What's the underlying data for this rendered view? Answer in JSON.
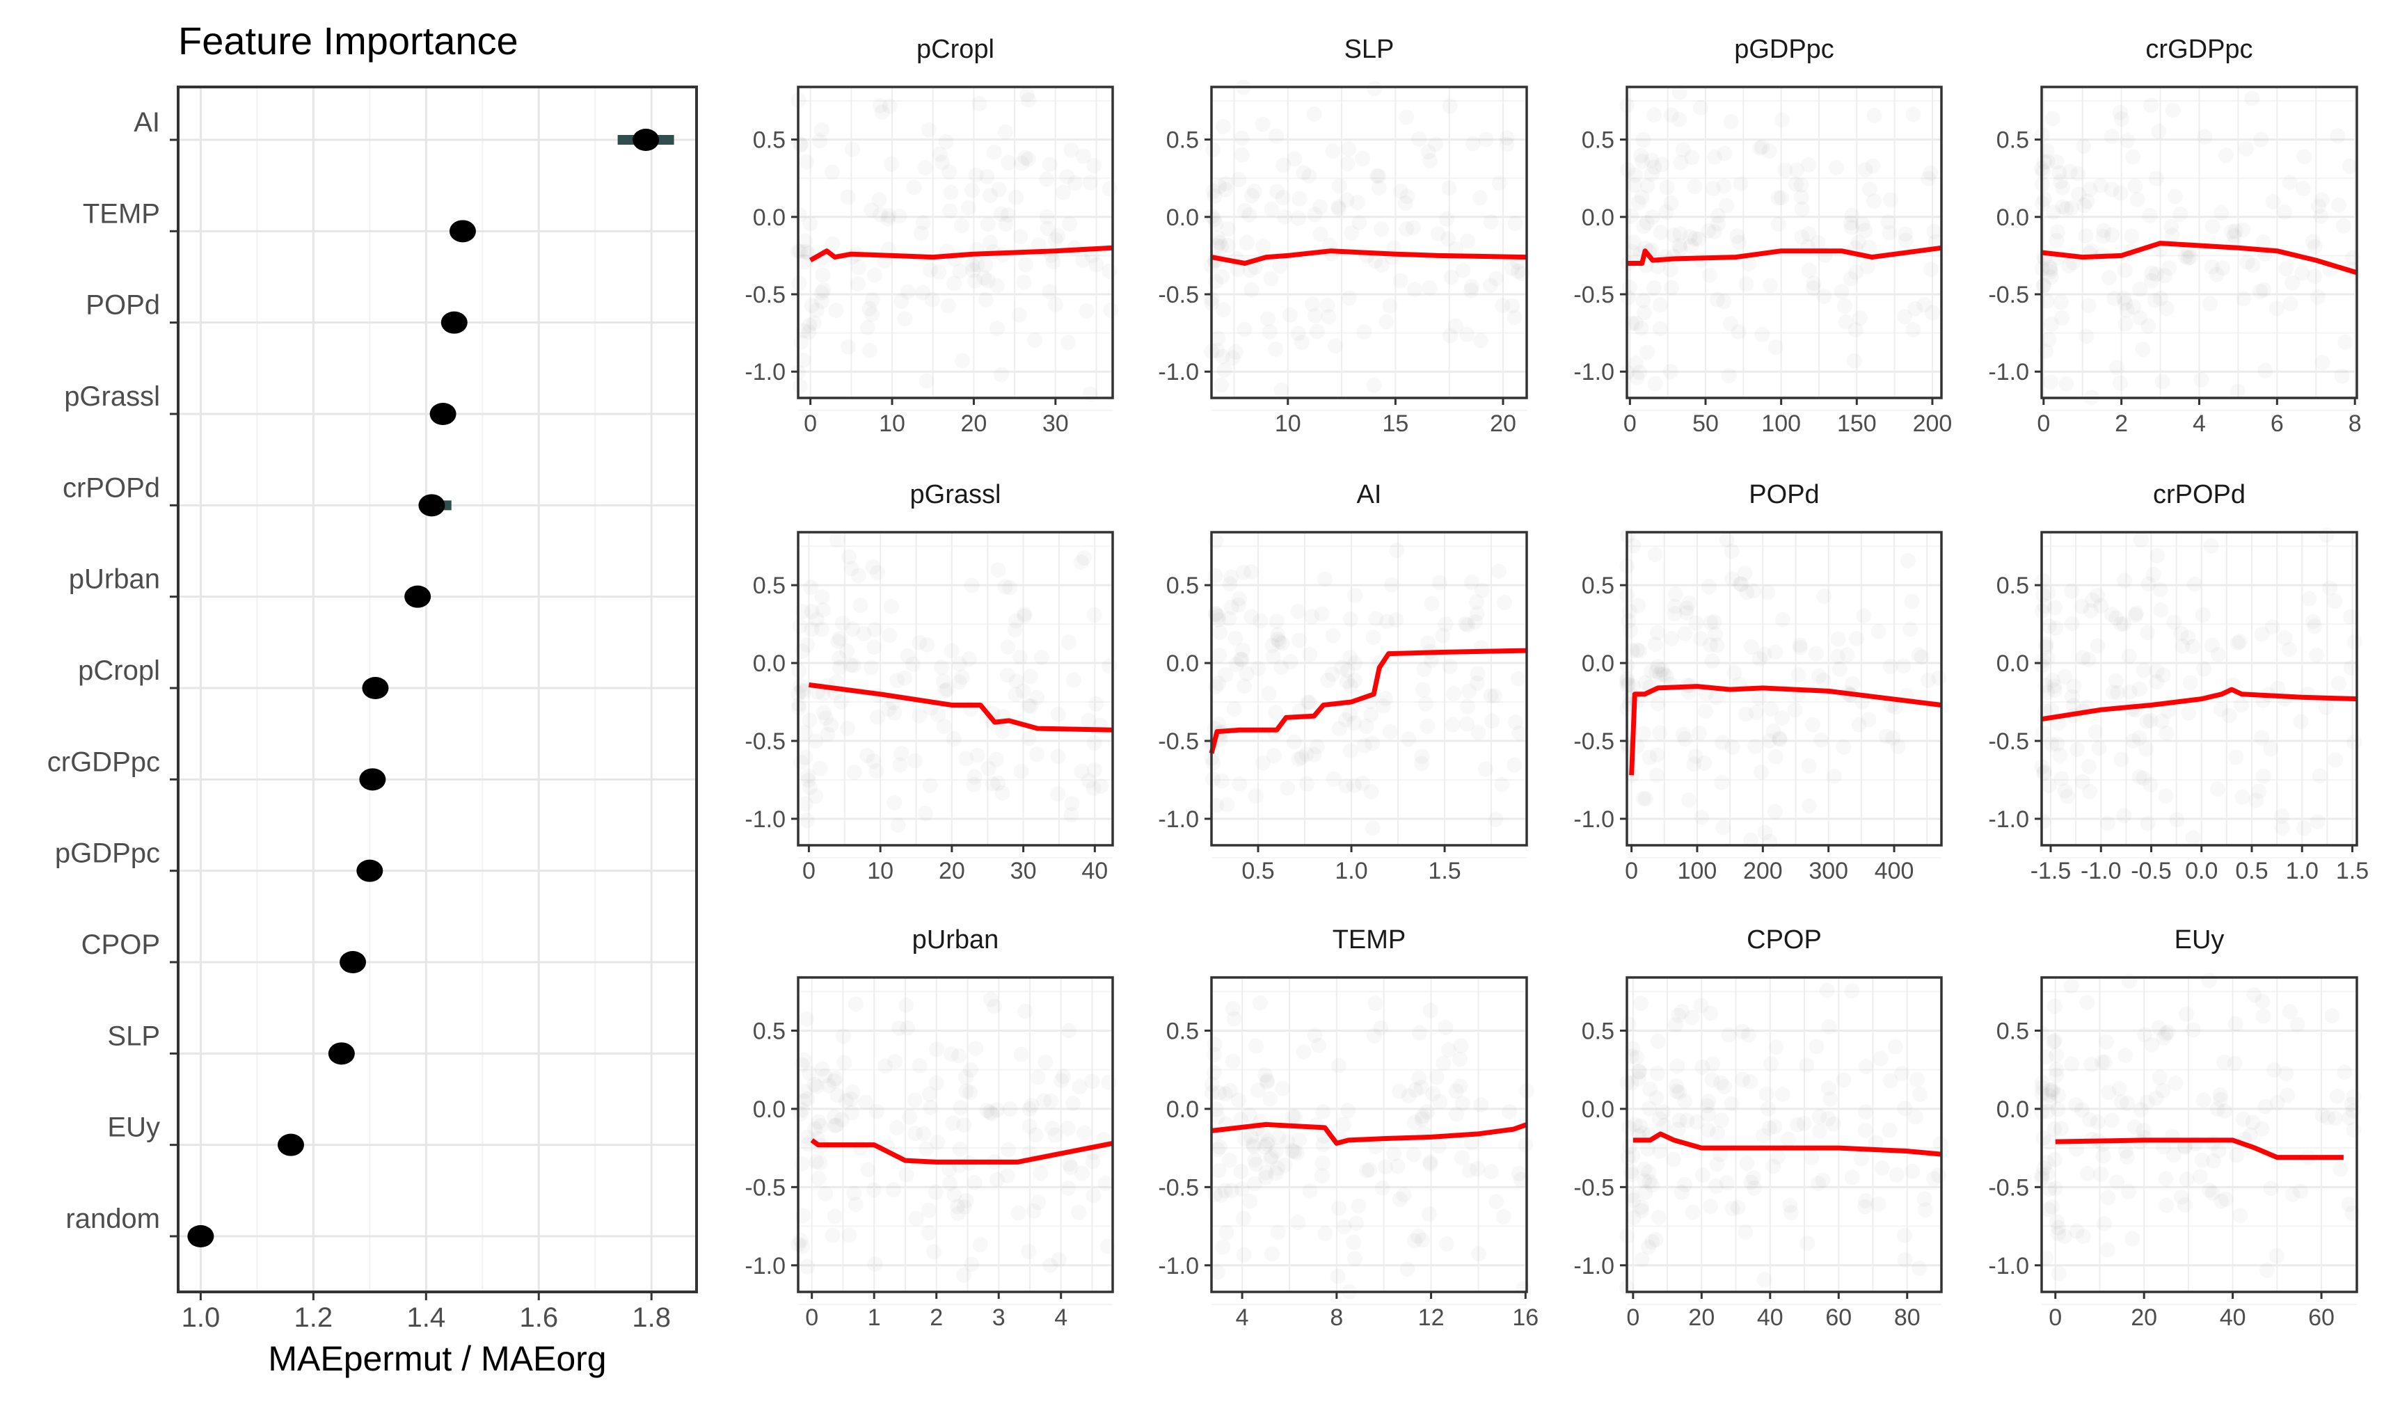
{
  "chart_data": [
    {
      "type": "scatter",
      "title": "Feature Importance",
      "xlabel": "MAEpermut / MAEorg",
      "xlim": [
        0.96,
        1.88
      ],
      "xticks": [
        1.0,
        1.2,
        1.4,
        1.6,
        1.8
      ],
      "xtick_labels": [
        "1.0",
        "1.2",
        "1.4",
        "1.6",
        "1.8"
      ],
      "grid": true,
      "features": [
        {
          "name": "AI",
          "value": 1.79,
          "lo": 1.74,
          "hi": 1.84
        },
        {
          "name": "TEMP",
          "value": 1.465,
          "lo": 1.45,
          "hi": 1.48
        },
        {
          "name": "POPd",
          "value": 1.45,
          "lo": 1.44,
          "hi": 1.46
        },
        {
          "name": "pGrassl",
          "value": 1.43,
          "lo": 1.42,
          "hi": 1.44
        },
        {
          "name": "crPOPd",
          "value": 1.41,
          "lo": 1.4,
          "hi": 1.445
        },
        {
          "name": "pUrban",
          "value": 1.385,
          "lo": 1.375,
          "hi": 1.395
        },
        {
          "name": "pCropl",
          "value": 1.31,
          "lo": 1.3,
          "hi": 1.32
        },
        {
          "name": "crGDPpc",
          "value": 1.305,
          "lo": 1.29,
          "hi": 1.315
        },
        {
          "name": "pGDPpc",
          "value": 1.3,
          "lo": 1.29,
          "hi": 1.31
        },
        {
          "name": "CPOP",
          "value": 1.27,
          "lo": 1.255,
          "hi": 1.28
        },
        {
          "name": "SLP",
          "value": 1.25,
          "lo": 1.24,
          "hi": 1.26
        },
        {
          "name": "EUy",
          "value": 1.16,
          "lo": 1.15,
          "hi": 1.17
        },
        {
          "name": "random",
          "value": 1.0,
          "lo": 0.995,
          "hi": 1.005
        }
      ],
      "colors": {
        "point": "#000000",
        "errorbar": "#2f4f4f"
      }
    },
    {
      "type": "line",
      "description_panels": "partial dependence per feature with faint scatter",
      "ylim": [
        -1.17,
        0.84
      ],
      "yticks": [
        0.5,
        0.0,
        -0.5,
        -1.0
      ],
      "ytick_labels": [
        "0.5",
        "0.0",
        "-0.5",
        "-1.0"
      ],
      "colors": {
        "line": "#ff0000",
        "points": "#808080"
      },
      "panels": [
        {
          "title": "pCropl",
          "xlim": [
            -1.5,
            37
          ],
          "xticks": [
            0,
            10,
            20,
            30
          ],
          "xtick_labels": [
            "0",
            "10",
            "20",
            "30"
          ],
          "line": [
            [
              0,
              -0.28
            ],
            [
              1,
              -0.25
            ],
            [
              2,
              -0.22
            ],
            [
              3,
              -0.26
            ],
            [
              5,
              -0.24
            ],
            [
              10,
              -0.25
            ],
            [
              15,
              -0.26
            ],
            [
              20,
              -0.24
            ],
            [
              30,
              -0.22
            ],
            [
              37,
              -0.2
            ]
          ]
        },
        {
          "title": "SLP",
          "xlim": [
            6.45,
            21.1
          ],
          "xticks": [
            10,
            15,
            20
          ],
          "xtick_labels": [
            "10",
            "15",
            "20"
          ],
          "line": [
            [
              6.45,
              -0.26
            ],
            [
              8,
              -0.3
            ],
            [
              9,
              -0.26
            ],
            [
              10,
              -0.25
            ],
            [
              12,
              -0.22
            ],
            [
              15,
              -0.24
            ],
            [
              17,
              -0.25
            ],
            [
              21.1,
              -0.26
            ]
          ]
        },
        {
          "title": "pGDPpc",
          "xlim": [
            -2,
            206
          ],
          "xticks": [
            0,
            50,
            100,
            150,
            200
          ],
          "xtick_labels": [
            "0",
            "50",
            "100",
            "150",
            "200"
          ],
          "line": [
            [
              -2,
              -0.3
            ],
            [
              8,
              -0.3
            ],
            [
              10,
              -0.22
            ],
            [
              15,
              -0.28
            ],
            [
              30,
              -0.27
            ],
            [
              70,
              -0.26
            ],
            [
              100,
              -0.22
            ],
            [
              140,
              -0.22
            ],
            [
              160,
              -0.26
            ],
            [
              206,
              -0.2
            ]
          ]
        },
        {
          "title": "crGDPpc",
          "xlim": [
            -0.05,
            8.05
          ],
          "xticks": [
            0,
            2,
            4,
            6,
            8
          ],
          "xtick_labels": [
            "0",
            "2",
            "4",
            "6",
            "8"
          ],
          "line": [
            [
              -0.05,
              -0.23
            ],
            [
              1,
              -0.26
            ],
            [
              2,
              -0.25
            ],
            [
              3,
              -0.17
            ],
            [
              5,
              -0.2
            ],
            [
              6,
              -0.22
            ],
            [
              7,
              -0.28
            ],
            [
              8.05,
              -0.36
            ]
          ]
        },
        {
          "title": "pGrassl",
          "xlim": [
            -1.5,
            42.5
          ],
          "xticks": [
            0,
            10,
            20,
            30,
            40
          ],
          "xtick_labels": [
            "0",
            "10",
            "20",
            "30",
            "40"
          ],
          "line": [
            [
              0,
              -0.14
            ],
            [
              5,
              -0.17
            ],
            [
              10,
              -0.2
            ],
            [
              20,
              -0.27
            ],
            [
              24,
              -0.27
            ],
            [
              26,
              -0.38
            ],
            [
              28,
              -0.37
            ],
            [
              32,
              -0.42
            ],
            [
              42.5,
              -0.43
            ]
          ]
        },
        {
          "title": "AI",
          "xlim": [
            0.25,
            1.94
          ],
          "xticks": [
            0.5,
            1.0,
            1.5
          ],
          "xtick_labels": [
            "0.5",
            "1.0",
            "1.5"
          ],
          "line": [
            [
              0.25,
              -0.58
            ],
            [
              0.28,
              -0.44
            ],
            [
              0.4,
              -0.43
            ],
            [
              0.6,
              -0.43
            ],
            [
              0.65,
              -0.35
            ],
            [
              0.8,
              -0.34
            ],
            [
              0.85,
              -0.27
            ],
            [
              1.0,
              -0.25
            ],
            [
              1.12,
              -0.2
            ],
            [
              1.15,
              -0.03
            ],
            [
              1.2,
              0.06
            ],
            [
              1.5,
              0.07
            ],
            [
              1.94,
              0.08
            ]
          ]
        },
        {
          "title": "POPd",
          "xlim": [
            -7,
            472
          ],
          "xticks": [
            0,
            100,
            200,
            300,
            400
          ],
          "xtick_labels": [
            "0",
            "100",
            "200",
            "300",
            "400"
          ],
          "line": [
            [
              0,
              -0.72
            ],
            [
              5,
              -0.2
            ],
            [
              20,
              -0.2
            ],
            [
              40,
              -0.16
            ],
            [
              100,
              -0.15
            ],
            [
              150,
              -0.17
            ],
            [
              200,
              -0.16
            ],
            [
              300,
              -0.18
            ],
            [
              472,
              -0.27
            ]
          ]
        },
        {
          "title": "crPOPd",
          "xlim": [
            -1.59,
            1.545
          ],
          "xticks": [
            -1.5,
            -1.0,
            -0.5,
            0.0,
            0.5,
            1.0,
            1.5
          ],
          "xtick_labels": [
            "-1.5",
            "-1.0",
            "-0.5",
            "0.0",
            "0.5",
            "1.0",
            "1.5"
          ],
          "line": [
            [
              -1.59,
              -0.36
            ],
            [
              -1,
              -0.3
            ],
            [
              -0.5,
              -0.27
            ],
            [
              0,
              -0.23
            ],
            [
              0.2,
              -0.2
            ],
            [
              0.3,
              -0.17
            ],
            [
              0.4,
              -0.2
            ],
            [
              1,
              -0.22
            ],
            [
              1.545,
              -0.23
            ]
          ]
        },
        {
          "title": "pUrban",
          "xlim": [
            -0.22,
            4.83
          ],
          "xticks": [
            0,
            1,
            2,
            3,
            4
          ],
          "xtick_labels": [
            "0",
            "1",
            "2",
            "3",
            "4"
          ],
          "line": [
            [
              0,
              -0.2
            ],
            [
              0.1,
              -0.23
            ],
            [
              1,
              -0.23
            ],
            [
              1.5,
              -0.33
            ],
            [
              2,
              -0.34
            ],
            [
              3.3,
              -0.34
            ],
            [
              4.83,
              -0.22
            ]
          ]
        },
        {
          "title": "TEMP",
          "xlim": [
            2.7,
            16.05
          ],
          "xticks": [
            4,
            8,
            12,
            16
          ],
          "xtick_labels": [
            "4",
            "8",
            "12",
            "16"
          ],
          "line": [
            [
              2.7,
              -0.14
            ],
            [
              5,
              -0.1
            ],
            [
              7.5,
              -0.12
            ],
            [
              8,
              -0.22
            ],
            [
              8.5,
              -0.2
            ],
            [
              10,
              -0.19
            ],
            [
              12,
              -0.18
            ],
            [
              14,
              -0.16
            ],
            [
              15.5,
              -0.13
            ],
            [
              16.05,
              -0.1
            ]
          ]
        },
        {
          "title": "CPOP",
          "xlim": [
            -1.8,
            90
          ],
          "xticks": [
            0,
            20,
            40,
            60,
            80
          ],
          "xtick_labels": [
            "0",
            "20",
            "40",
            "60",
            "80"
          ],
          "line": [
            [
              0,
              -0.2
            ],
            [
              5,
              -0.2
            ],
            [
              8,
              -0.16
            ],
            [
              12,
              -0.2
            ],
            [
              20,
              -0.25
            ],
            [
              60,
              -0.25
            ],
            [
              80,
              -0.27
            ],
            [
              90,
              -0.29
            ]
          ]
        },
        {
          "title": "EUy",
          "xlim": [
            -3.1,
            68
          ],
          "xticks": [
            0,
            20,
            40,
            60
          ],
          "xtick_labels": [
            "0",
            "20",
            "40",
            "60"
          ],
          "line": [
            [
              0,
              -0.21
            ],
            [
              20,
              -0.2
            ],
            [
              40,
              -0.2
            ],
            [
              45,
              -0.25
            ],
            [
              50,
              -0.31
            ],
            [
              65,
              -0.31
            ]
          ]
        }
      ]
    }
  ]
}
